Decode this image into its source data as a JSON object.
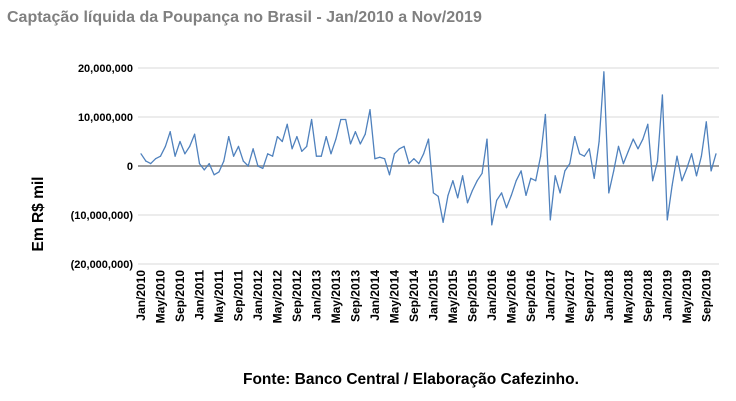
{
  "chart_data": {
    "type": "line",
    "title": "Captação líquida da Poupança no Brasil - Jan/2010 a Nov/2019",
    "xlabel": "",
    "ylabel": "Em R$ mil",
    "source": "Fonte: Banco Central / Elaboração Cafezinho.",
    "ylim": [
      -20000000,
      20000000
    ],
    "yticks": [
      -20000000,
      -10000000,
      0,
      10000000,
      20000000
    ],
    "ytick_labels": [
      "(20,000,000)",
      "(10,000,000)",
      "0",
      "10,000,000",
      "20,000,000"
    ],
    "grid": true,
    "legend": "none",
    "x_tick_labels": [
      "Jan/2010",
      "May/2010",
      "Sep/2010",
      "Jan/2011",
      "May/2011",
      "Sep/2011",
      "Jan/2012",
      "May/2012",
      "Sep/2012",
      "Jan/2013",
      "May/2013",
      "Sep/2013",
      "Jan/2014",
      "May/2014",
      "Sep/2014",
      "Jan/2015",
      "May/2015",
      "Sep/2015",
      "Jan/2016",
      "May/2016",
      "Sep/2016",
      "Jan/2017",
      "May/2017",
      "Sep/2017",
      "Jan/2018",
      "May/2018",
      "Sep/2018",
      "Jan/2019",
      "May/2019",
      "Sep/2019"
    ],
    "x_start": "Jan/2010",
    "x_end": "Nov/2019",
    "series": [
      {
        "color": "#4f81bd",
        "values": [
          2500000,
          1000000,
          500000,
          1500000,
          2000000,
          4000000,
          7000000,
          2000000,
          5000000,
          2500000,
          4000000,
          6500000,
          500000,
          -800000,
          500000,
          -1800000,
          -1200000,
          1000000,
          6000000,
          2000000,
          4000000,
          1000000,
          0,
          3500000,
          0,
          -500000,
          2500000,
          2000000,
          6000000,
          5000000,
          8500000,
          3500000,
          6000000,
          3000000,
          4000000,
          9500000,
          2000000,
          2000000,
          6000000,
          2500000,
          5500000,
          9500000,
          9500000,
          4500000,
          7000000,
          4500000,
          6500000,
          11500000,
          1500000,
          1800000,
          1500000,
          -1800000,
          2500000,
          3500000,
          4000000,
          500000,
          1500000,
          500000,
          2500000,
          5500000,
          -5500000,
          -6200000,
          -11500000,
          -6000000,
          -3000000,
          -6500000,
          -2000000,
          -7500000,
          -5000000,
          -3000000,
          -1500000,
          5500000,
          -12000000,
          -7000000,
          -5500000,
          -8500000,
          -6000000,
          -3000000,
          -1000000,
          -6000000,
          -2500000,
          -3000000,
          2000000,
          10500000,
          -11000000,
          -2000000,
          -5500000,
          -1000000,
          500000,
          6000000,
          2500000,
          2000000,
          3500000,
          -2500000,
          5000000,
          19200000,
          -5500000,
          -1000000,
          4000000,
          500000,
          3000000,
          5500000,
          3500000,
          5500000,
          8500000,
          -3000000,
          1000000,
          14500000,
          -11000000,
          -4000000,
          2000000,
          -3000000,
          -500000,
          2500000,
          -2000000,
          2000000,
          9000000,
          -1000000,
          2500000
        ]
      }
    ]
  }
}
